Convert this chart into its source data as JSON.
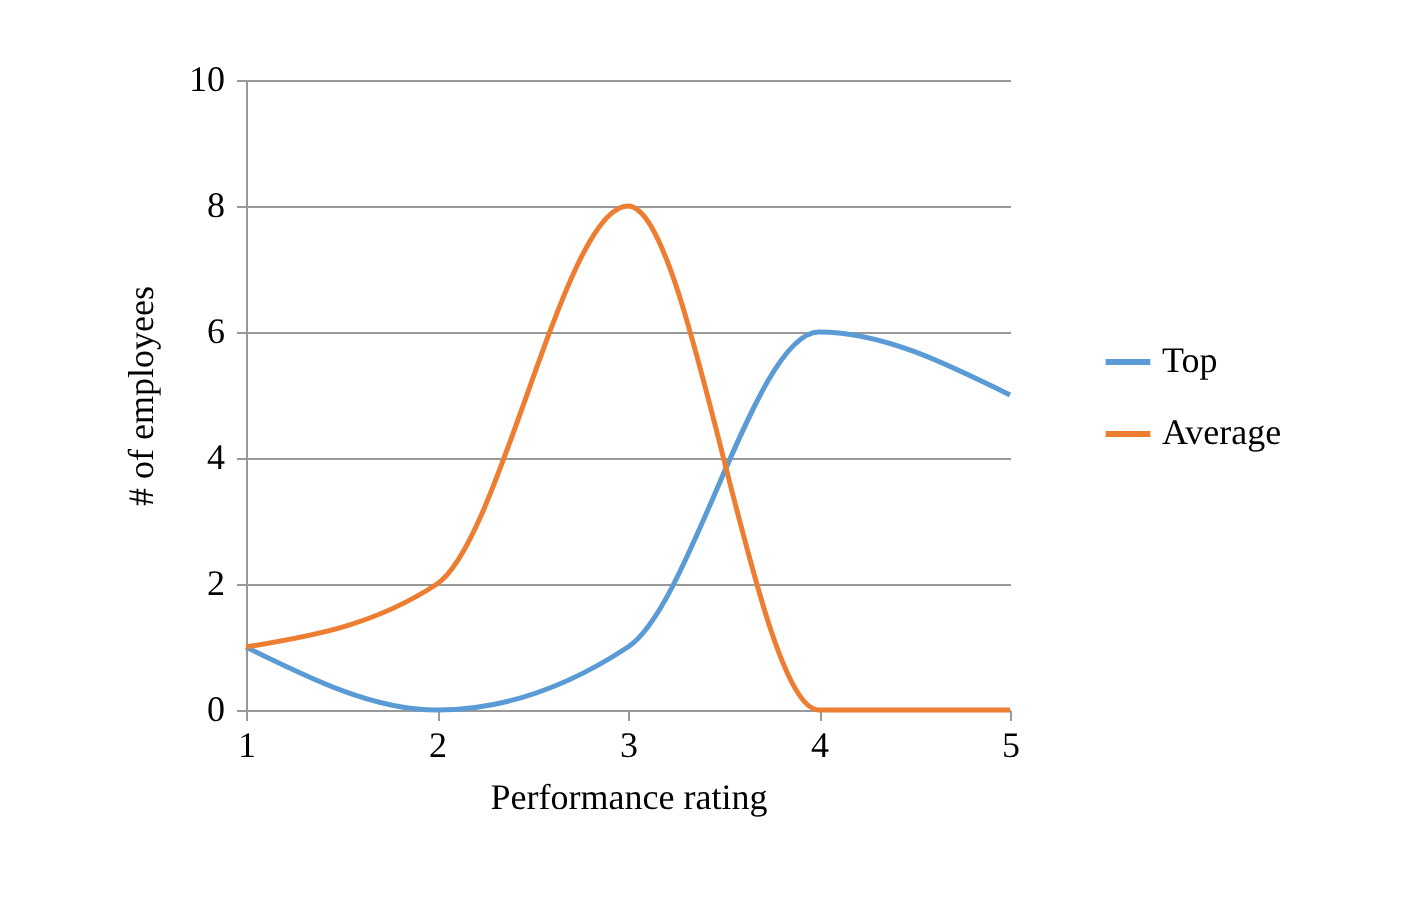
{
  "chart_data": {
    "type": "line",
    "xlabel": "Performance rating",
    "ylabel": "# of employees",
    "x": [
      1,
      2,
      3,
      4,
      5
    ],
    "series": [
      {
        "name": "Top",
        "color": "#5b9bd5",
        "values": [
          1,
          0,
          1,
          6,
          5
        ]
      },
      {
        "name": "Average",
        "color": "#ed7d31",
        "values": [
          1,
          2,
          8,
          0,
          0
        ]
      }
    ],
    "xlim": [
      1,
      5
    ],
    "xticks": [
      1,
      2,
      3,
      4,
      5
    ],
    "ylim": [
      0,
      10
    ],
    "yticks": [
      0,
      2,
      4,
      6,
      8,
      10
    ],
    "grid": "y",
    "legend": "right",
    "marker": "none",
    "line_style": "solid"
  }
}
